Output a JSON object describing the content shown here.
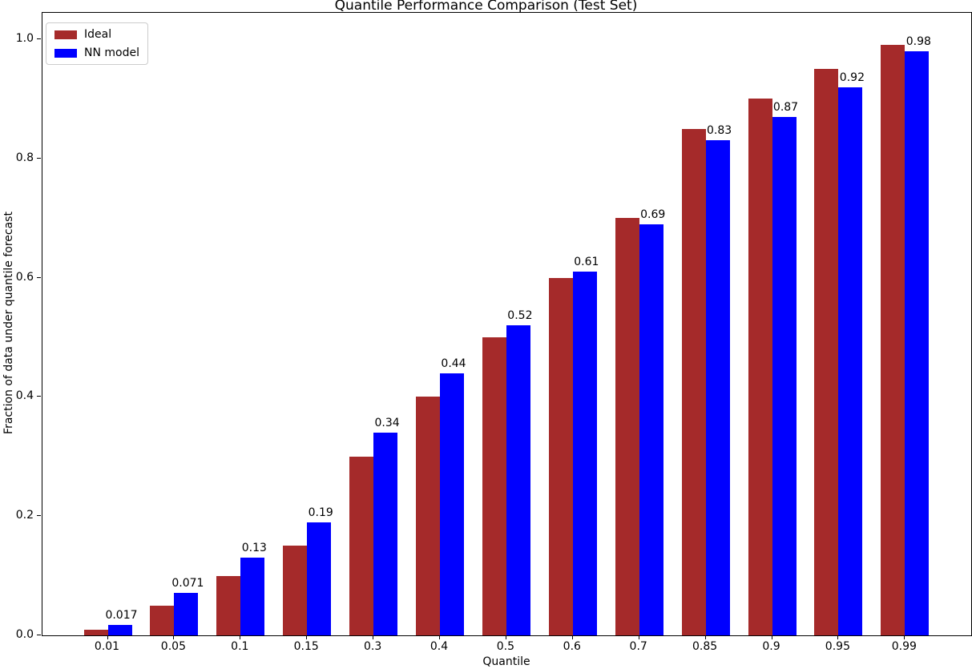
{
  "chart_data": {
    "type": "bar",
    "title": "Quantile Performance Comparison (Test Set)",
    "xlabel": "Quantile",
    "ylabel": "Fraction of data under quantile forecast",
    "categories": [
      "0.01",
      "0.05",
      "0.1",
      "0.15",
      "0.3",
      "0.4",
      "0.5",
      "0.6",
      "0.7",
      "0.85",
      "0.9",
      "0.95",
      "0.99"
    ],
    "series": [
      {
        "name": "Ideal",
        "color": "#A52A2A",
        "values": [
          0.01,
          0.05,
          0.1,
          0.15,
          0.3,
          0.4,
          0.5,
          0.6,
          0.7,
          0.85,
          0.9,
          0.95,
          0.99
        ]
      },
      {
        "name": "NN model",
        "color": "#0000FF",
        "values": [
          0.017,
          0.071,
          0.13,
          0.19,
          0.34,
          0.44,
          0.52,
          0.61,
          0.69,
          0.83,
          0.87,
          0.92,
          0.98
        ]
      }
    ],
    "bar_labels": [
      "0.017",
      "0.071",
      "0.13",
      "0.19",
      "0.34",
      "0.44",
      "0.52",
      "0.61",
      "0.69",
      "0.83",
      "0.87",
      "0.92",
      "0.98"
    ],
    "y_ticks": [
      "0.0",
      "0.2",
      "0.4",
      "0.6",
      "0.8",
      "1.0"
    ],
    "y_tick_values": [
      0.0,
      0.2,
      0.4,
      0.6,
      0.8,
      1.0
    ],
    "ylim": [
      0,
      1.044
    ],
    "legend_position": "upper left",
    "grid": false,
    "axis_color": "#000000",
    "background_color": "#ffffff"
  }
}
